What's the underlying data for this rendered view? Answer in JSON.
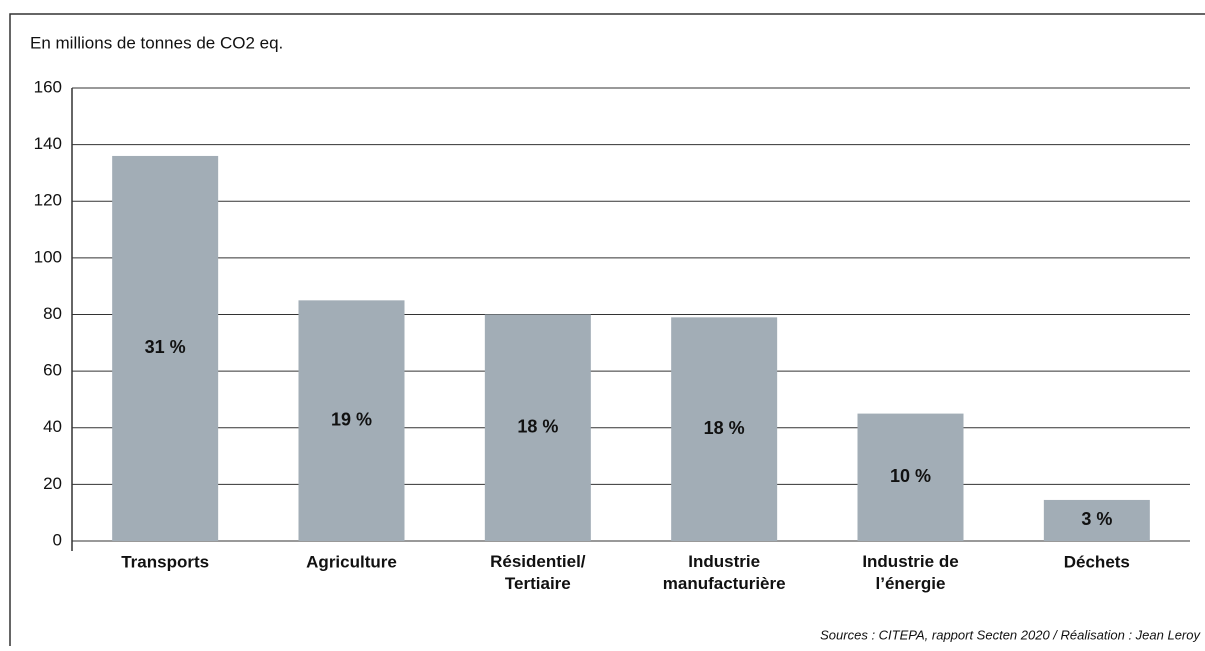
{
  "chart_data": {
    "type": "bar",
    "subtitle": "En millions de tonnes de CO2 eq.",
    "categories": [
      "Transports",
      "Agriculture",
      "Résidentiel/\nTertiaire",
      "Industrie\nmanufacturière",
      "Industrie de\nl’énergie",
      "Déchets"
    ],
    "values": [
      136,
      85,
      80,
      79,
      45,
      14.5
    ],
    "share_labels": [
      "31 %",
      "19 %",
      "18 %",
      "18 %",
      "10 %",
      "3 %"
    ],
    "color": "#a2adb6",
    "ylim": [
      0,
      160
    ],
    "yticks": [
      0,
      20,
      40,
      60,
      80,
      100,
      120,
      140,
      160
    ],
    "grid": true,
    "source": "Sources : CITEPA, rapport Secten 2020 / Réalisation : Jean Leroy"
  }
}
